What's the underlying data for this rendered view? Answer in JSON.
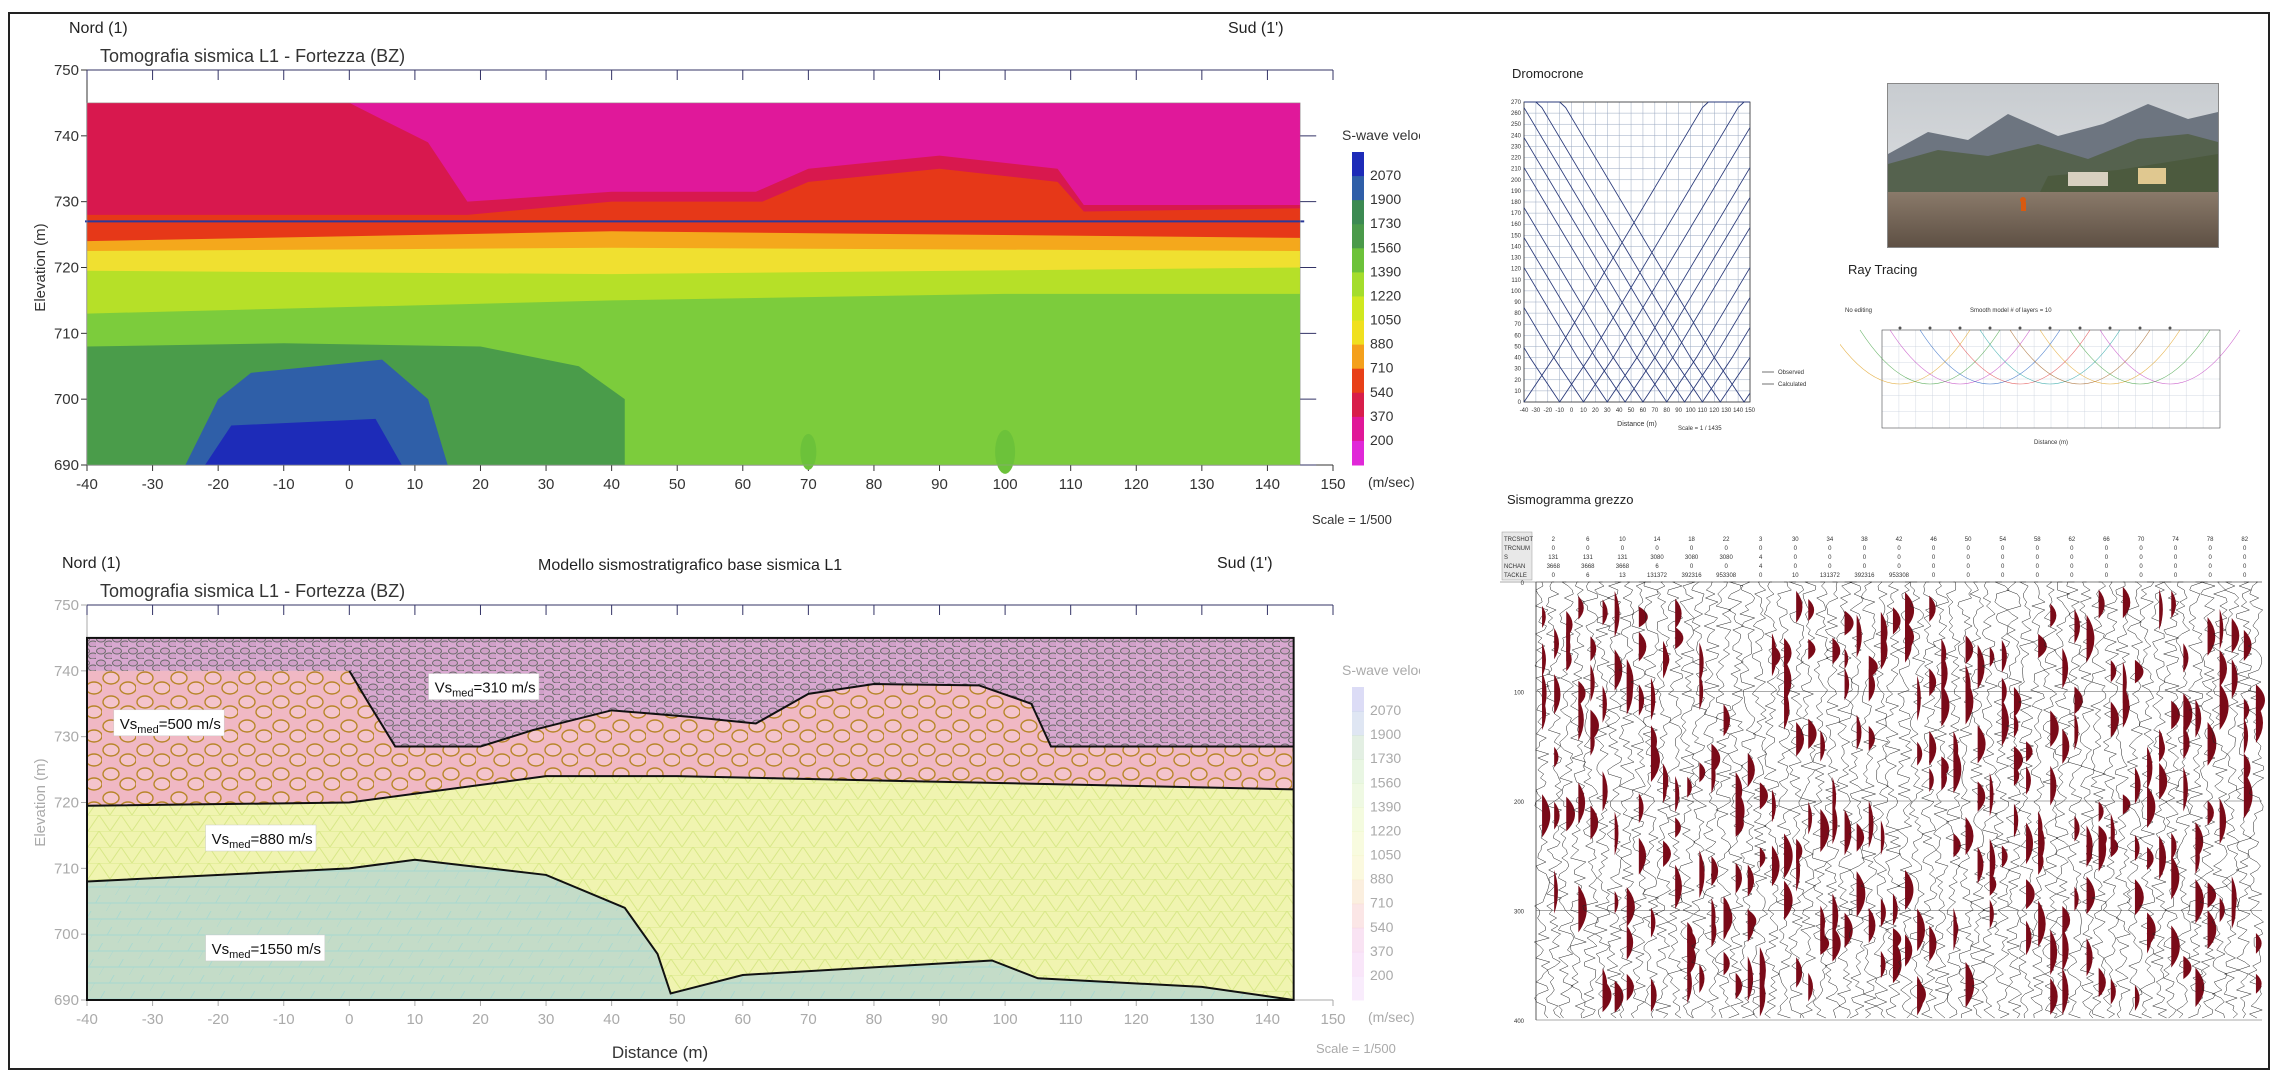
{
  "top_section": {
    "left_label": "Nord (1)",
    "right_label": "Sud (1')",
    "scale": "Scale = 1/500"
  },
  "bottom_section": {
    "left_label": "Nord (1)",
    "center_title": "Modello sismostratigrafico base sismica L1",
    "right_label": "Sud (1')",
    "scale": "Scale = 1/500"
  },
  "right_panels": {
    "dromocrone_title": "Dromocrone",
    "ray_tracing_title": "Ray Tracing",
    "sismogramma_title": "Sismogramma grezzo",
    "legend_observed": "Observed",
    "legend_calculated": "Calculated",
    "dromo_xlabel": "Distance (m)",
    "dromo_scale": "Scale = 1 / 1435",
    "ray_header_left": "No editing",
    "ray_header_mid": "Smooth model  # of layers = 10",
    "ray_xlabel": "Distance (m)",
    "seis_header_labels": [
      "TRCSHOT",
      "TRCNUM",
      "S",
      "NCHAN",
      "TACKLE"
    ]
  },
  "chart_data": [
    {
      "type": "heatmap",
      "title": "Tomografia sismica L1 - Fortezza (BZ)",
      "xlabel": "",
      "ylabel": "Elevation (m)",
      "xlim": [
        -40,
        150
      ],
      "ylim": [
        690,
        750
      ],
      "x_ticks": [
        -40,
        -30,
        -20,
        -10,
        0,
        10,
        20,
        30,
        40,
        50,
        60,
        70,
        80,
        90,
        100,
        110,
        120,
        130,
        140,
        150
      ],
      "y_ticks": [
        690,
        700,
        710,
        720,
        730,
        740,
        750
      ],
      "colorbar_title": "S-wave velocity",
      "colorbar_unit": "(m/sec)",
      "colorbar_ticks": [
        2070,
        1900,
        1730,
        1560,
        1390,
        1220,
        1050,
        880,
        710,
        540,
        370,
        200
      ],
      "colorbar_colors": [
        "#1d2bb8",
        "#2f5fa8",
        "#3c8a52",
        "#4a9a4a",
        "#6cc23a",
        "#a4dd2c",
        "#d0e820",
        "#f0e020",
        "#f4a01c",
        "#e84018",
        "#d81e4a",
        "#e01898",
        "#e028d8"
      ]
    },
    {
      "type": "heatmap",
      "title": "Tomografia sismica L1 - Fortezza (BZ)",
      "xlabel": "Distance (m)",
      "ylabel": "Elevation (m)",
      "xlim": [
        -40,
        150
      ],
      "ylim": [
        690,
        750
      ],
      "x_ticks": [
        -40,
        -30,
        -20,
        -10,
        0,
        10,
        20,
        30,
        40,
        50,
        60,
        70,
        80,
        90,
        100,
        110,
        120,
        130,
        140,
        150
      ],
      "y_ticks": [
        690,
        700,
        710,
        720,
        730,
        740,
        750
      ],
      "colorbar_title": "S-wave velocity",
      "colorbar_unit": "(m/sec)",
      "colorbar_ticks": [
        2070,
        1900,
        1730,
        1560,
        1390,
        1220,
        1050,
        880,
        710,
        540,
        370,
        200
      ],
      "layers": [
        {
          "label_main": "Vs",
          "label_sub": "med",
          "label_value": "=310 m/s",
          "label_x": 13,
          "label_y": 737
        },
        {
          "label_main": "Vs",
          "label_sub": "med",
          "label_value": "=500 m/s",
          "label_x": -35,
          "label_y": 731.5
        },
        {
          "label_main": "Vs",
          "label_sub": "med",
          "label_value": "=880 m/s",
          "label_x": -21,
          "label_y": 714
        },
        {
          "label_main": "Vs",
          "label_sub": "med",
          "label_value": "=1550 m/s",
          "label_x": -21,
          "label_y": 697.3
        }
      ]
    },
    {
      "type": "line",
      "title": "Dromocrone",
      "xlabel": "Distance (m)",
      "x_ticks": [
        -40,
        -30,
        -20,
        -10,
        0,
        10,
        20,
        30,
        40,
        50,
        60,
        70,
        80,
        90,
        100,
        110,
        120,
        130,
        140,
        150
      ],
      "y_ticks": [
        0,
        10,
        20,
        30,
        40,
        50,
        60,
        70,
        80,
        90,
        100,
        110,
        120,
        130,
        140,
        150,
        160,
        170,
        180,
        190,
        200,
        210,
        220,
        230,
        240,
        250,
        260,
        270
      ],
      "xlim": [
        -40,
        150
      ],
      "ylim": [
        0,
        270
      ]
    },
    {
      "type": "line",
      "title": "Sismogramma grezzo",
      "y_ticks": [
        0,
        100,
        200,
        300,
        400
      ],
      "header_rows": [
        [
          "2",
          "6",
          "10",
          "14",
          "18",
          "22",
          "3",
          "30",
          "34",
          "38",
          "42",
          "46",
          "50",
          "54",
          "58",
          "62",
          "66",
          "70",
          "74",
          "78",
          "82"
        ],
        [
          "0",
          "0",
          "0",
          "0",
          "0",
          "0",
          "0",
          "0",
          "0",
          "0",
          "0",
          "0",
          "0",
          "0",
          "0",
          "0",
          "0",
          "0",
          "0",
          "0",
          "0"
        ],
        [
          "131",
          "131",
          "131",
          "3080",
          "3080",
          "3080",
          "4",
          "0",
          "0",
          "0",
          "0",
          "0",
          "0",
          "0",
          "0",
          "0",
          "0",
          "0",
          "0",
          "0",
          "0"
        ],
        [
          "3668",
          "3668",
          "3668",
          "6",
          "0",
          "0",
          "4",
          "0",
          "0",
          "0",
          "0",
          "0",
          "0",
          "0",
          "0",
          "0",
          "0",
          "0",
          "0",
          "0",
          "0"
        ],
        [
          "0",
          "6",
          "13",
          "131372",
          "392316",
          "953308",
          "0",
          "10",
          "131372",
          "392316",
          "953308",
          "0",
          "0",
          "0",
          "0",
          "0",
          "0",
          "0",
          "0",
          "0",
          "0"
        ]
      ]
    }
  ]
}
